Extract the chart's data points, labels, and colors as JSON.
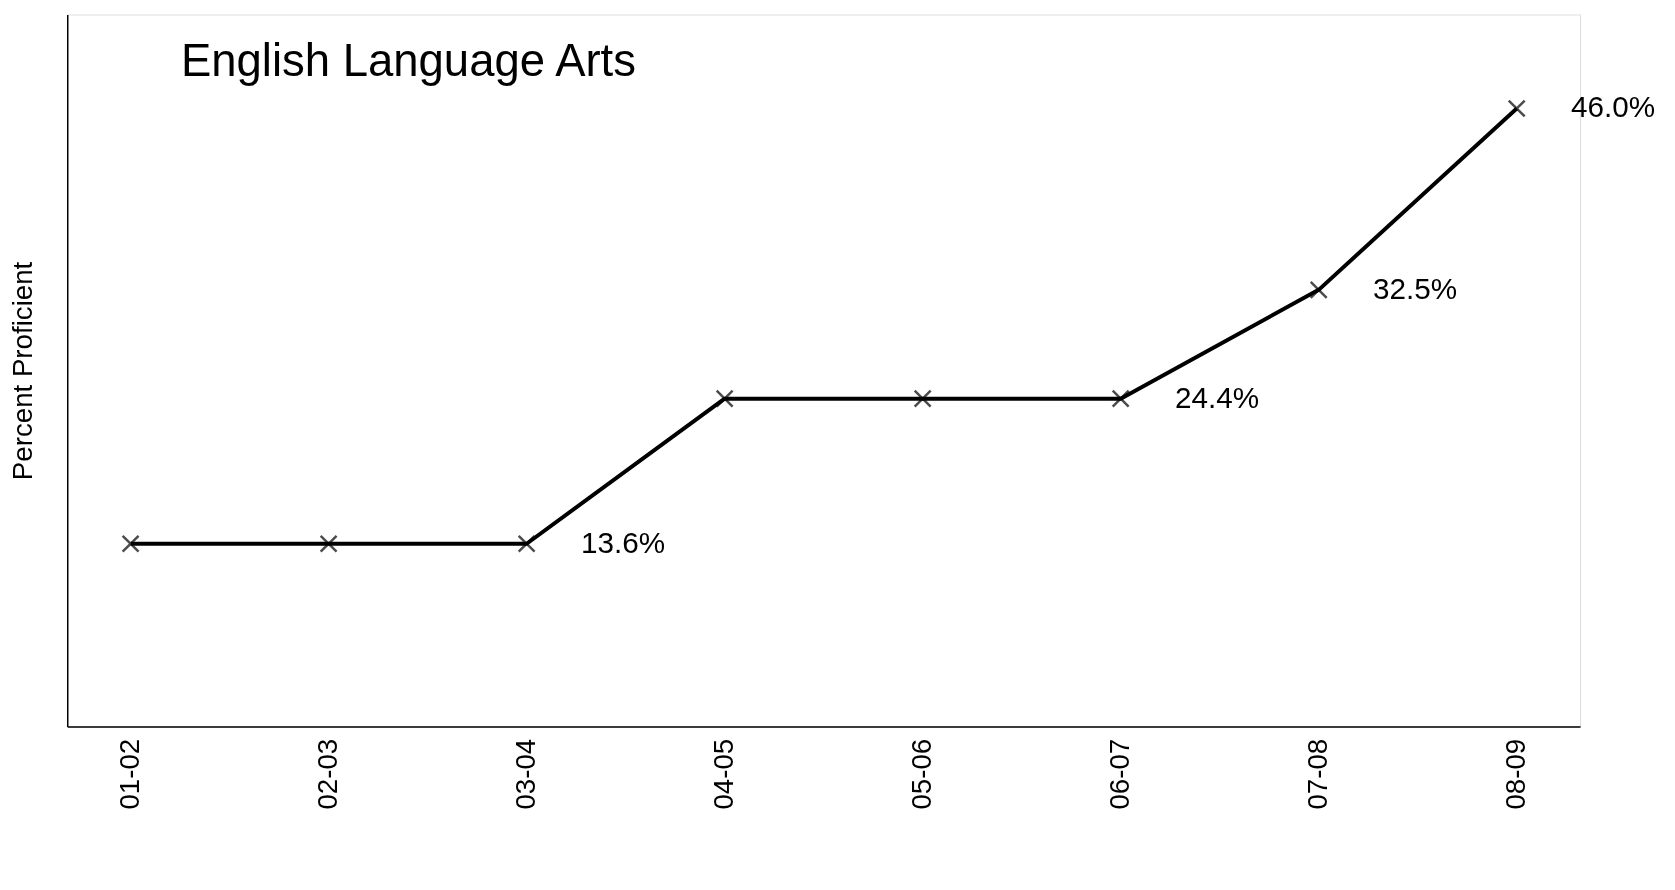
{
  "chart_data": {
    "type": "line",
    "title": "English Language Arts",
    "ylabel": "Percent Proficient",
    "categories": [
      "01-02",
      "02-03",
      "03-04",
      "04-05",
      "05-06",
      "06-07",
      "07-08",
      "08-09"
    ],
    "values": [
      13.6,
      13.6,
      13.6,
      24.4,
      24.4,
      24.4,
      32.5,
      46.0
    ],
    "value_labels": [
      null,
      null,
      "13.6%",
      null,
      null,
      "24.4%",
      "32.5%",
      "46.0%"
    ],
    "color": "#000000",
    "marker": "cross",
    "line_style": "solid",
    "ylim": [
      0,
      53
    ],
    "tick_labels": "x",
    "grid": false
  }
}
